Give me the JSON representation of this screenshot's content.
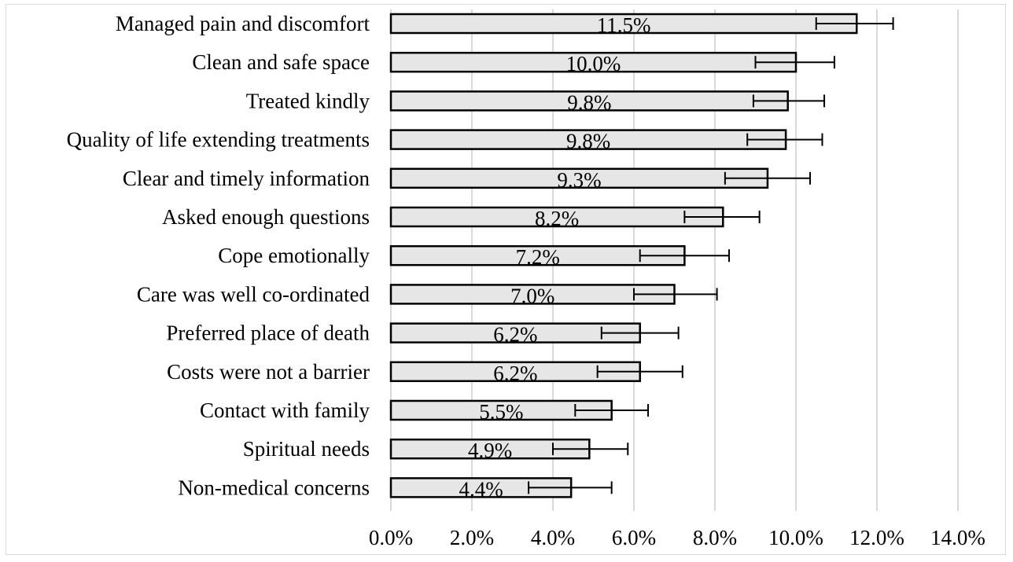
{
  "chart_data": {
    "type": "bar",
    "orientation": "horizontal",
    "categories": [
      "Managed pain and discomfort",
      "Clean and safe space",
      "Treated kindly",
      "Quality of life extending treatments",
      "Clear and timely information",
      "Asked enough questions",
      "Cope emotionally",
      "Care was well co-ordinated",
      "Preferred place of death",
      "Costs were not a barrier",
      "Contact with family",
      "Spiritual needs",
      "Non-medical concerns"
    ],
    "values": [
      11.5,
      10.0,
      9.8,
      9.75,
      9.3,
      8.2,
      7.25,
      7.0,
      6.15,
      6.15,
      5.45,
      4.9,
      4.45
    ],
    "data_labels": [
      "11.5%",
      "10.0%",
      "9.8%",
      "9.8%",
      "9.3%",
      "8.2%",
      "7.2%",
      "7.0%",
      "6.2%",
      "6.2%",
      "5.5%",
      "4.9%",
      "4.4%"
    ],
    "error_low": [
      10.5,
      9.0,
      8.95,
      8.8,
      8.25,
      7.25,
      6.15,
      6.0,
      5.2,
      5.1,
      4.55,
      4.0,
      3.4
    ],
    "error_high": [
      12.4,
      10.95,
      10.7,
      10.65,
      10.35,
      9.1,
      8.35,
      8.05,
      7.1,
      7.2,
      6.35,
      5.85,
      5.45
    ],
    "xlim": [
      0,
      14
    ],
    "x_ticks": [
      0,
      2,
      4,
      6,
      8,
      10,
      12,
      14
    ],
    "x_tick_labels": [
      "0.0%",
      "2.0%",
      "4.0%",
      "6.0%",
      "8.0%",
      "10.0%",
      "12.0%",
      "14.0%"
    ],
    "grid": "vertical",
    "title": "",
    "xlabel": "",
    "ylabel": "",
    "colors": {
      "bar_fill": "#e6e6e6",
      "bar_stroke": "#000000",
      "grid": "#d9d9d9",
      "error_bar": "#000000",
      "text": "#000000"
    }
  }
}
